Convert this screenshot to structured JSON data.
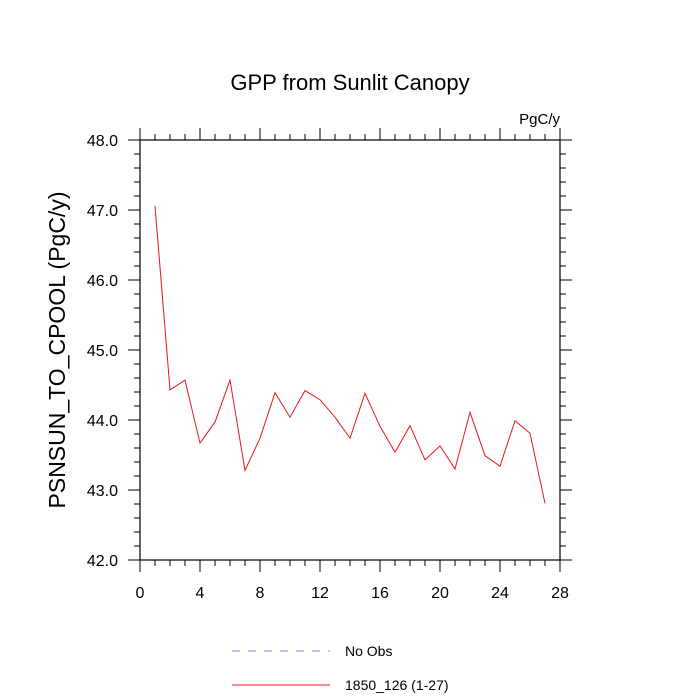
{
  "chart_data": {
    "type": "line",
    "title": "GPP from Sunlit Canopy",
    "units": "PgC/y",
    "xlabel": "",
    "ylabel": "PSNSUN_TO_CPOOL  (PgC/y)",
    "xlim": [
      0,
      28
    ],
    "ylim": [
      42.0,
      48.0
    ],
    "x_ticks": [
      0,
      4,
      8,
      12,
      16,
      20,
      24,
      28
    ],
    "x_tick_labels": [
      "0",
      "4",
      "8",
      "12",
      "16",
      "20",
      "24",
      "28"
    ],
    "y_ticks": [
      42.0,
      43.0,
      44.0,
      45.0,
      46.0,
      47.0,
      48.0
    ],
    "y_tick_labels": [
      "42.0",
      "43.0",
      "44.0",
      "45.0",
      "46.0",
      "47.0",
      "48.0"
    ],
    "grid": false,
    "series": [
      {
        "name": "1850_126 (1-27)",
        "color": "#e8161a",
        "x": [
          1,
          2,
          3,
          4,
          5,
          6,
          7,
          8,
          9,
          10,
          11,
          12,
          13,
          14,
          15,
          16,
          17,
          18,
          19,
          20,
          21,
          22,
          23,
          24,
          25,
          26,
          27
        ],
        "values": [
          47.06,
          44.43,
          44.57,
          43.67,
          43.97,
          44.57,
          43.28,
          43.74,
          44.39,
          44.04,
          44.42,
          44.29,
          44.04,
          43.74,
          44.38,
          43.91,
          43.54,
          43.92,
          43.43,
          43.63,
          43.3,
          44.11,
          43.49,
          43.34,
          43.99,
          43.81,
          42.81
        ]
      }
    ],
    "legend": [
      {
        "label": "No Obs",
        "color": "#8080ff",
        "style": "dashed"
      },
      {
        "label": "1850_126 (1-27)",
        "color": "#e8161a",
        "style": "solid"
      }
    ],
    "legend_position": "bottom-center"
  }
}
